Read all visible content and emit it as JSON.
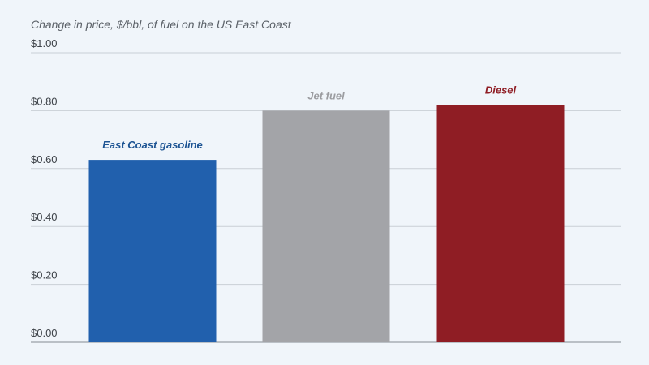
{
  "chart_data": {
    "type": "bar",
    "title": "",
    "ylabel": "Change in price, $/bbl, of fuel on the US East Coast",
    "xlabel": "",
    "categories": [
      "East Coast gasoline",
      "Jet fuel",
      "Diesel"
    ],
    "values": [
      0.63,
      0.8,
      0.82
    ],
    "colors": [
      "#2160ad",
      "#a3a4a8",
      "#8f1d24"
    ],
    "label_colors": [
      "#1d5493",
      "#9b9ca0",
      "#8f1d24"
    ],
    "ylim": [
      0,
      1.0
    ],
    "yticks": [
      0,
      0.2,
      0.4,
      0.6,
      0.8,
      1.0
    ],
    "ytick_labels": [
      "$0.00",
      "$0.20",
      "$0.40",
      "$0.60",
      "$0.80",
      "$1.00"
    ],
    "grid": true,
    "legend": "none"
  }
}
